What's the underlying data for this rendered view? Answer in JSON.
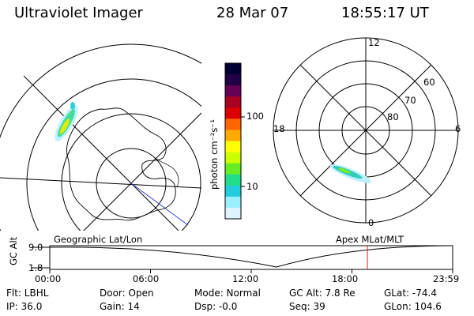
{
  "header": {
    "title": "Ultraviolet Imager",
    "date": "28 Mar 07",
    "time": "18:55:17 UT"
  },
  "left_panel": {
    "label": "Geographic Lat/Lon"
  },
  "right_panel": {
    "label": "Apex MLat/MLT",
    "mlt_labels": [
      "12",
      "18",
      "6",
      "0"
    ],
    "lat_labels": [
      "60",
      "70",
      "80"
    ]
  },
  "colorbar": {
    "unit_label": "photon cm⁻²s⁻¹",
    "ticks": [
      "100",
      "10"
    ],
    "scale": "log",
    "colors": [
      "#000033",
      "#220044",
      "#660055",
      "#aa0022",
      "#dd0000",
      "#ff6600",
      "#ffaa00",
      "#ffff00",
      "#ccff00",
      "#66ee22",
      "#22dd88",
      "#22ccdd",
      "#99eeff",
      "#ddf4ff"
    ]
  },
  "timeline": {
    "y_label": "GC Alt",
    "y_ticks": [
      "9.0",
      "1.8"
    ],
    "x_ticks": [
      "00:00",
      "06:00",
      "12:00",
      "18:00",
      "23:59"
    ],
    "x_ticks_hours": [
      0,
      6,
      12,
      18,
      24
    ],
    "marker_hour": 18.92
  },
  "footer": {
    "filter": "Flt: LBHL",
    "ip": "IP: 36.0",
    "door": "Door: Open",
    "gain": "Gain: 14",
    "mode": "Mode: Normal",
    "dsp": "Dsp:   -0.0",
    "gc_alt": "GC Alt: 7.8 Re",
    "seq": "Seq: 39",
    "glat": "GLat: -74.4",
    "glon": "GLon: 104.6"
  }
}
